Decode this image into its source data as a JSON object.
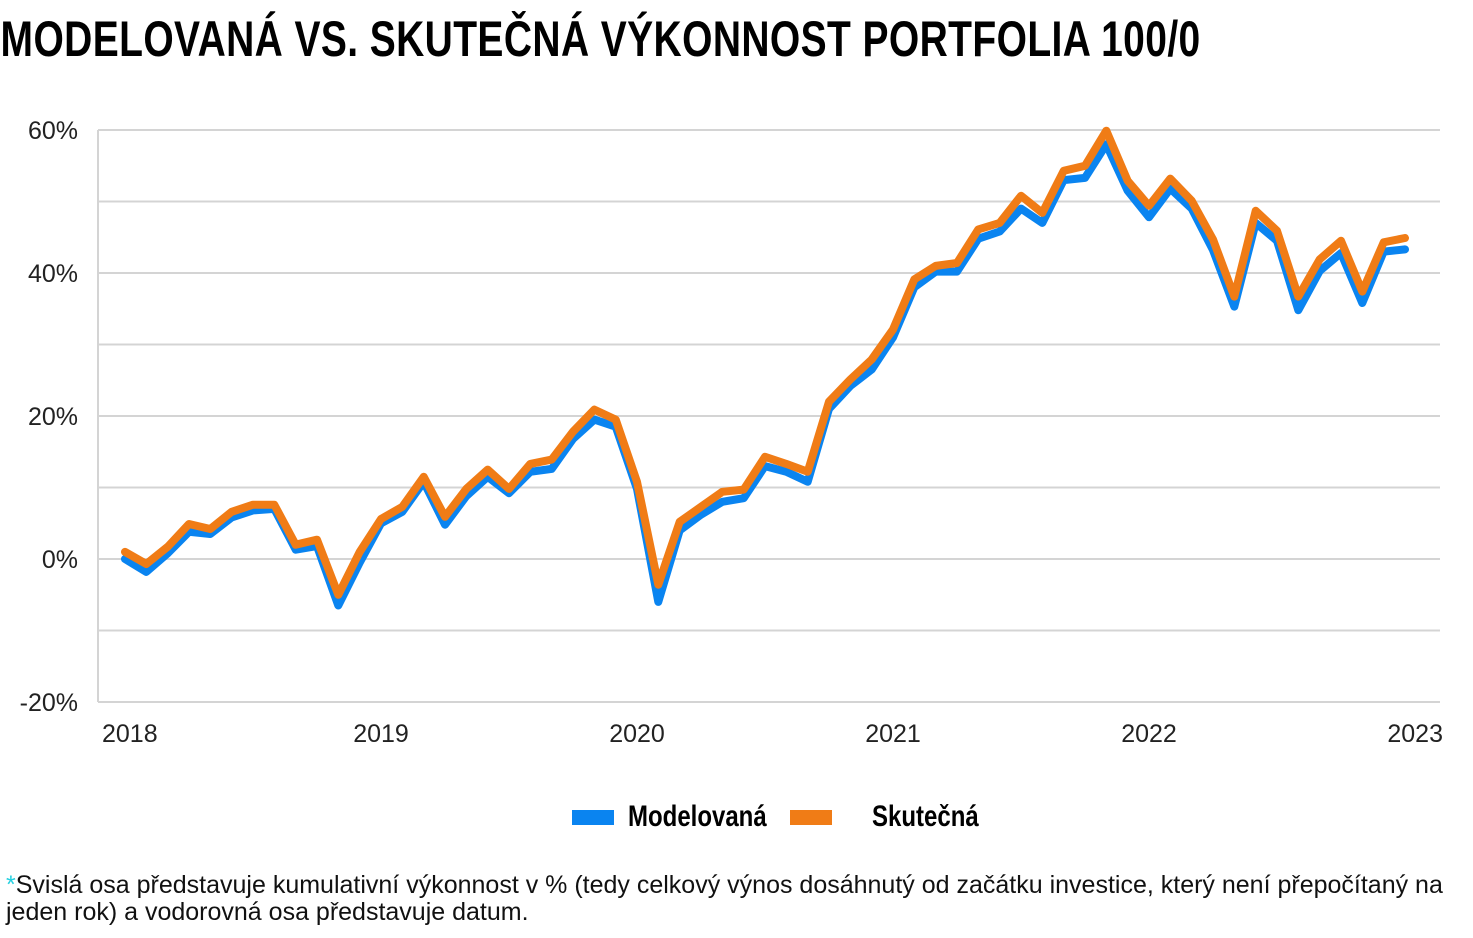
{
  "chart_data": {
    "type": "line",
    "title": "MODELOVANÁ VS. SKUTEČNÁ VÝKONNOST PORTFOLIA 100/0",
    "xlabel": "",
    "ylabel": "",
    "ylim": [
      -20,
      60
    ],
    "yticks": [
      "60%",
      "40%",
      "20%",
      "0%",
      "-20%"
    ],
    "ytick_values": [
      60,
      40,
      20,
      0,
      -20
    ],
    "gridlines_every": 10,
    "grid": true,
    "xticks": [
      "2018",
      "2019",
      "2020",
      "2021",
      "2022",
      "2023"
    ],
    "legend_placement": "bottom",
    "x": [
      "2018-01",
      "2018-02",
      "2018-03",
      "2018-04",
      "2018-05",
      "2018-06",
      "2018-07",
      "2018-08",
      "2018-09",
      "2018-10",
      "2018-11",
      "2018-12",
      "2019-01",
      "2019-02",
      "2019-03",
      "2019-04",
      "2019-05",
      "2019-06",
      "2019-07",
      "2019-08",
      "2019-09",
      "2019-10",
      "2019-11",
      "2019-12",
      "2020-01",
      "2020-02",
      "2020-03",
      "2020-04",
      "2020-05",
      "2020-06",
      "2020-07",
      "2020-08",
      "2020-09",
      "2020-10",
      "2020-11",
      "2020-12",
      "2021-01",
      "2021-02",
      "2021-03",
      "2021-04",
      "2021-05",
      "2021-06",
      "2021-07",
      "2021-08",
      "2021-09",
      "2021-10",
      "2021-11",
      "2021-12",
      "2022-01",
      "2022-02",
      "2022-03",
      "2022-04",
      "2022-05",
      "2022-06",
      "2022-07",
      "2022-08",
      "2022-09",
      "2022-10",
      "2022-11",
      "2022-12",
      "2023-01"
    ],
    "series": [
      {
        "name": "Modelovaná",
        "color": "#0a84f0",
        "values": [
          0,
          -1.8,
          0.8,
          3.8,
          3.5,
          5.8,
          6.8,
          7.0,
          1.3,
          1.8,
          -6.5,
          -0.5,
          5.0,
          6.6,
          10.8,
          4.8,
          8.8,
          11.5,
          9.2,
          12.2,
          12.6,
          16.8,
          19.5,
          18.5,
          9.8,
          -6.0,
          4.0,
          6.2,
          8.0,
          8.5,
          13.0,
          12.2,
          10.8,
          21.0,
          24.2,
          26.5,
          31.0,
          38.0,
          40.2,
          40.2,
          44.8,
          45.8,
          49.0,
          47.0,
          53.0,
          53.3,
          58.0,
          51.5,
          47.8,
          51.8,
          49.0,
          43.2,
          35.3,
          47.0,
          44.5,
          34.8,
          40.3,
          42.8,
          35.8,
          43.0,
          43.3
        ]
      },
      {
        "name": "Skutečná",
        "color": "#f07c16",
        "values": [
          1.0,
          -0.7,
          1.7,
          4.9,
          4.2,
          6.6,
          7.6,
          7.6,
          2.0,
          2.7,
          -5.0,
          1.0,
          5.6,
          7.3,
          11.5,
          5.9,
          9.8,
          12.5,
          9.8,
          13.3,
          13.9,
          17.8,
          20.9,
          19.5,
          10.8,
          -3.6,
          5.2,
          7.3,
          9.4,
          9.7,
          14.3,
          13.3,
          12.2,
          22.0,
          25.1,
          27.9,
          32.1,
          39.1,
          41.0,
          41.4,
          46.1,
          47.0,
          50.8,
          48.4,
          54.3,
          55.0,
          59.9,
          52.9,
          49.4,
          53.2,
          50.1,
          44.7,
          36.7,
          48.7,
          45.9,
          36.7,
          41.9,
          44.5,
          37.4,
          44.3,
          44.9
        ]
      }
    ]
  },
  "legend": {
    "items": [
      {
        "label": "Modelovaná",
        "color": "#0a84f0"
      },
      {
        "label": "Skutečná",
        "color": "#f07c16"
      }
    ]
  },
  "footnote": {
    "asterisk": "*",
    "text": "Svislá osa představuje kumulativní výkonnost v % (tedy celkový výnos dosáhnutý od začátku investice, který není přepočítaný na jeden rok) a vodorovná osa představuje datum."
  }
}
